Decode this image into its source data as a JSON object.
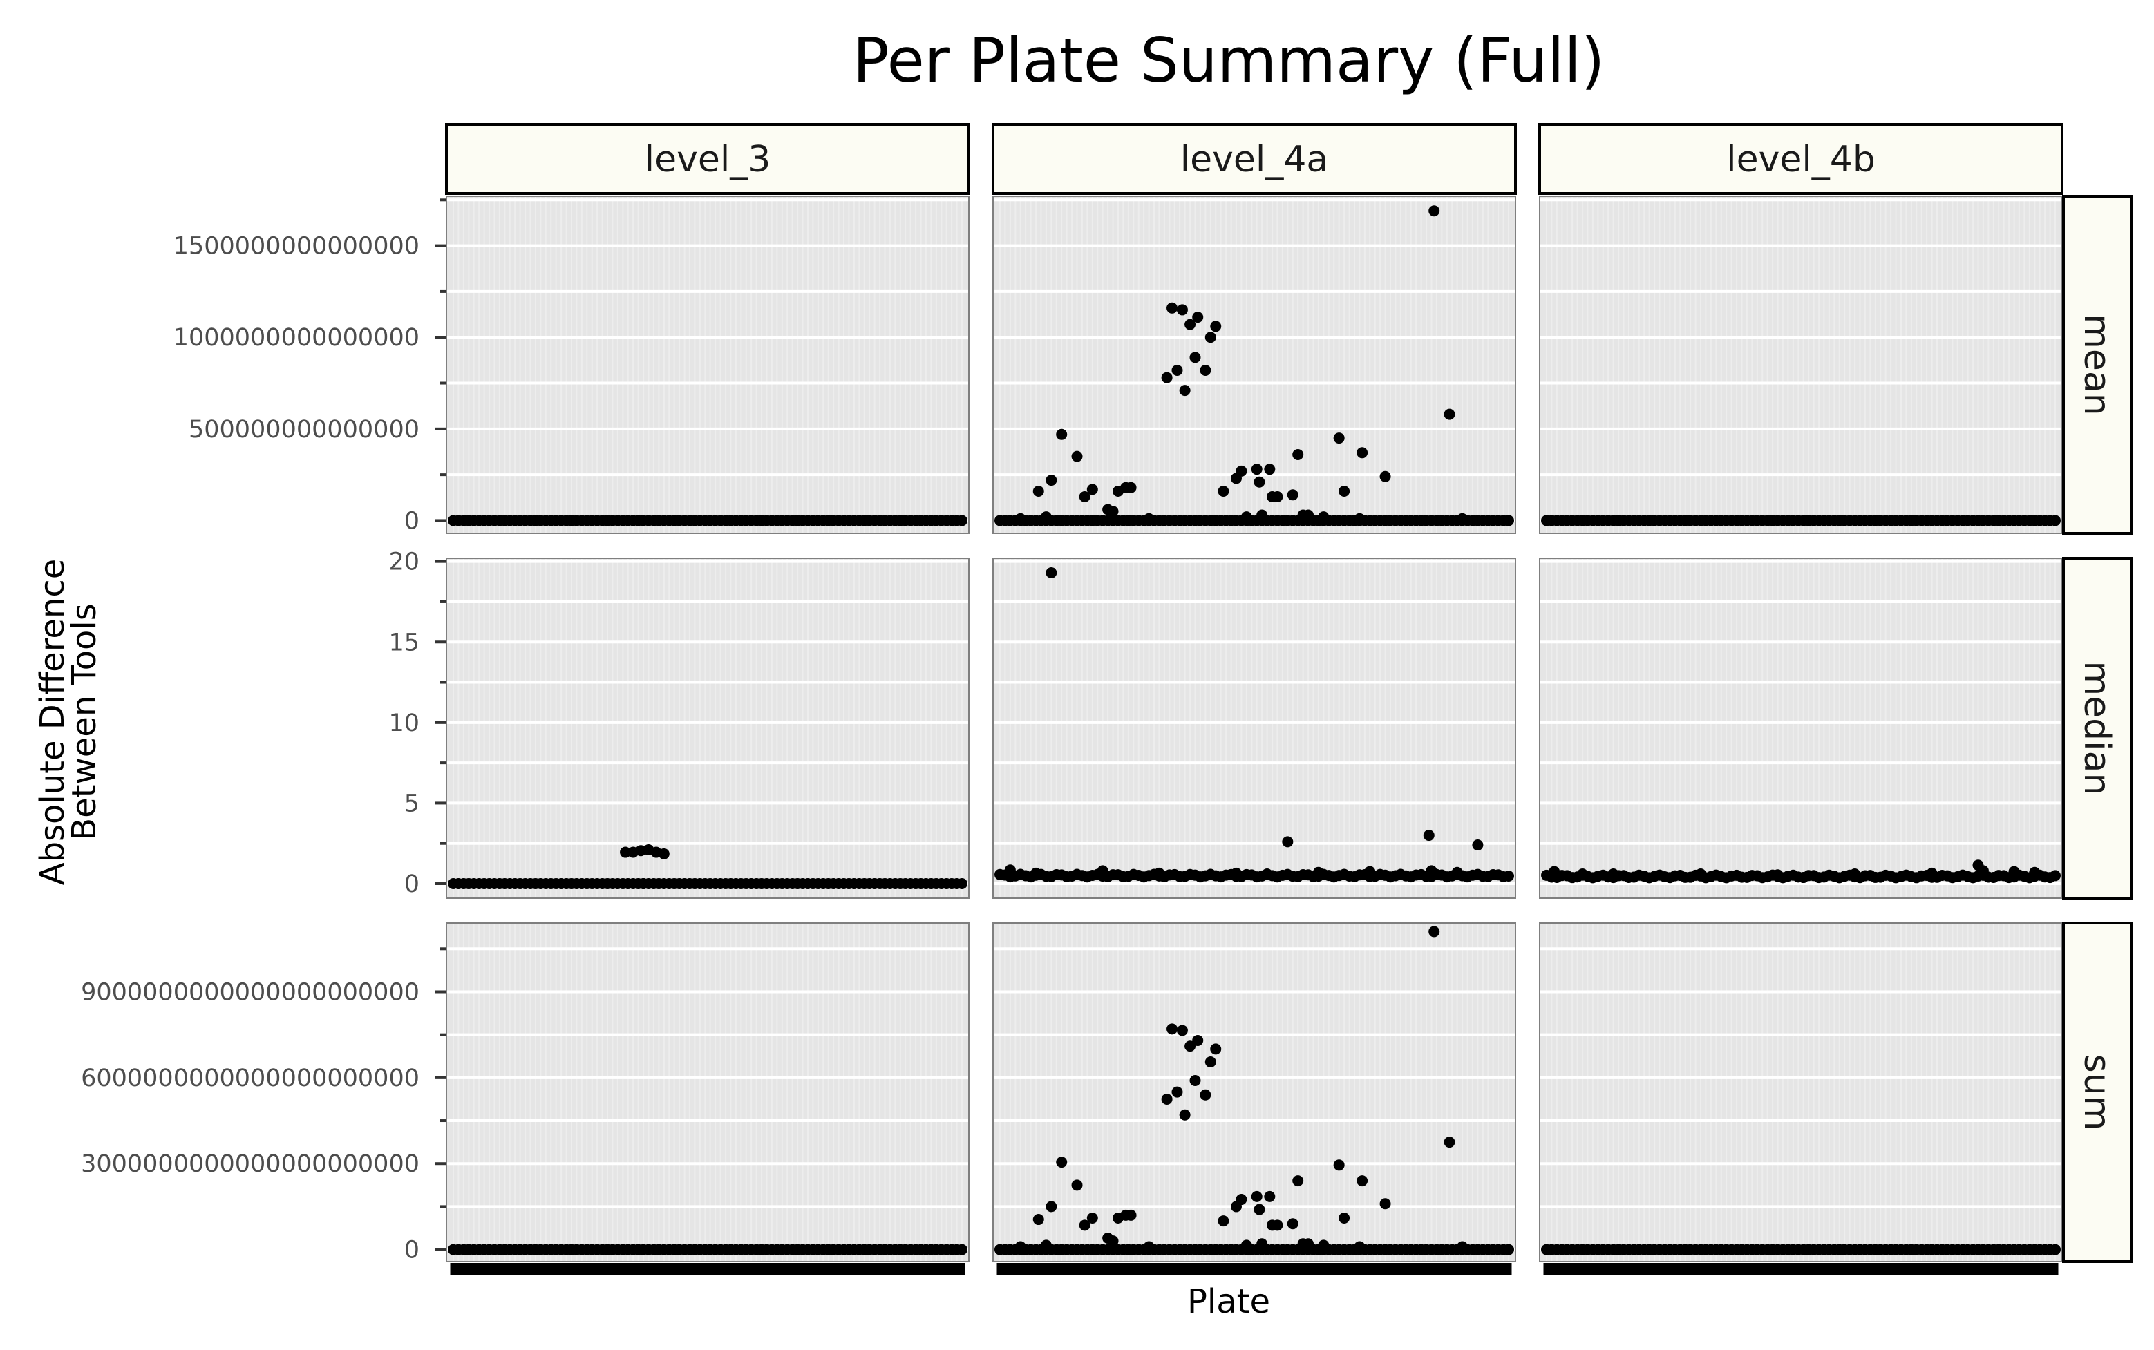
{
  "chart_data": {
    "type": "scatter",
    "title": "Per Plate Summary (Full)",
    "xlabel": "Plate",
    "ylabel_lines": [
      "Absolute Difference",
      "Between Tools"
    ],
    "grid": true,
    "legend": "none",
    "columns": [
      "level_3",
      "level_4a",
      "level_4b"
    ],
    "rows": [
      {
        "name": "mean",
        "ylim": [
          -70000000000000,
          1770000000000000
        ],
        "ticks": [
          0,
          500000000000000,
          1000000000000000,
          1500000000000000
        ],
        "tick_labels": [
          "0",
          "500000000000000",
          "1000000000000000",
          "1500000000000000"
        ]
      },
      {
        "name": "median",
        "ylim": [
          -0.9,
          20.2
        ],
        "ticks": [
          0,
          5,
          10,
          15,
          20
        ],
        "tick_labels": [
          "0",
          "5",
          "10",
          "15",
          "20"
        ]
      },
      {
        "name": "sum",
        "ylim": [
          -420000000000000000000,
          11400000000000000000000
        ],
        "ticks": [
          0,
          3000000000000000000000,
          6000000000000000000000,
          9000000000000000000000
        ],
        "tick_labels": [
          "0",
          "3000000000000000000000",
          "6000000000000000000000",
          "9000000000000000000000"
        ]
      }
    ],
    "x_count": 100,
    "panels": {
      "level_3": {
        "mean": {
          "baseline": 0,
          "points": []
        },
        "median": {
          "baseline": 0,
          "points": [
            [
              33.5,
              1.95
            ],
            [
              35,
              1.95
            ],
            [
              36.5,
              2.05
            ],
            [
              38,
              2.1
            ],
            [
              39.5,
              1.95
            ],
            [
              41,
              1.85
            ],
            [
              37,
              0
            ]
          ]
        },
        "sum": {
          "baseline": 0,
          "points": []
        }
      },
      "level_4a": {
        "mean": {
          "baseline": 0,
          "points": [
            [
              7.5,
              160000000000000
            ],
            [
              10,
              220000000000000
            ],
            [
              12,
              470000000000000
            ],
            [
              15,
              350000000000000
            ],
            [
              16.5,
              130000000000000
            ],
            [
              18,
              170000000000000
            ],
            [
              21,
              60000000000000
            ],
            [
              22,
              50000000000000
            ],
            [
              23,
              160000000000000
            ],
            [
              24.5,
              180000000000000
            ],
            [
              25.5,
              180000000000000
            ],
            [
              32.5,
              780000000000000
            ],
            [
              33.5,
              1160000000000000
            ],
            [
              34.5,
              820000000000000
            ],
            [
              35.5,
              1150000000000000
            ],
            [
              36,
              710000000000000
            ],
            [
              37,
              1070000000000000
            ],
            [
              38,
              890000000000000
            ],
            [
              38.5,
              1110000000000000
            ],
            [
              40,
              820000000000000
            ],
            [
              41,
              1000000000000000
            ],
            [
              42,
              1060000000000000
            ],
            [
              43.5,
              160000000000000
            ],
            [
              46,
              230000000000000
            ],
            [
              47,
              270000000000000
            ],
            [
              50,
              280000000000000
            ],
            [
              50.5,
              210000000000000
            ],
            [
              52.5,
              280000000000000
            ],
            [
              53,
              130000000000000
            ],
            [
              54,
              130000000000000
            ],
            [
              57,
              140000000000000
            ],
            [
              58,
              360000000000000
            ],
            [
              59,
              30000000000000
            ],
            [
              66,
              450000000000000
            ],
            [
              67,
              160000000000000
            ],
            [
              70.5,
              370000000000000
            ],
            [
              75,
              240000000000000
            ],
            [
              84.5,
              1690000000000000
            ],
            [
              87.5,
              580000000000000
            ],
            [
              4,
              10000000000000
            ],
            [
              9,
              20000000000000
            ],
            [
              29,
              10000000000000
            ],
            [
              48,
              20000000000000
            ],
            [
              51,
              30000000000000
            ],
            [
              60,
              30000000000000
            ],
            [
              63,
              20000000000000
            ],
            [
              70,
              10000000000000
            ],
            [
              90,
              10000000000000
            ]
          ]
        },
        "median": {
          "baseline": 0.5,
          "points": [
            [
              10,
              19.3
            ],
            [
              56,
              2.6
            ],
            [
              83.5,
              3.0
            ],
            [
              93,
              2.4
            ],
            [
              2,
              0.85
            ],
            [
              20,
              0.8
            ],
            [
              46,
              0.65
            ],
            [
              62,
              0.7
            ],
            [
              72,
              0.75
            ],
            [
              84,
              0.8
            ],
            [
              89,
              0.7
            ],
            [
              31,
              0.65
            ],
            [
              7,
              0.65
            ],
            [
              52,
              0.6
            ]
          ]
        },
        "sum": {
          "baseline": 0,
          "points": [
            [
              7.5,
              1050000000000000000000
            ],
            [
              10,
              1500000000000000000000
            ],
            [
              12,
              3050000000000000000000
            ],
            [
              15,
              2250000000000000000000
            ],
            [
              16.5,
              850000000000000000000
            ],
            [
              18,
              1100000000000000000000
            ],
            [
              21,
              400000000000000000000
            ],
            [
              22,
              300000000000000000000
            ],
            [
              23,
              1100000000000000000000
            ],
            [
              24.5,
              1200000000000000000000
            ],
            [
              25.5,
              1200000000000000000000
            ],
            [
              32.5,
              5250000000000000000000
            ],
            [
              33.5,
              7700000000000000000000
            ],
            [
              34.5,
              5500000000000000000000
            ],
            [
              35.5,
              7650000000000000000000
            ],
            [
              36,
              4700000000000000000000
            ],
            [
              37,
              7100000000000000000000
            ],
            [
              38,
              5900000000000000000000
            ],
            [
              38.5,
              7300000000000000000000
            ],
            [
              40,
              5400000000000000000000
            ],
            [
              41,
              6550000000000000000000
            ],
            [
              42,
              7000000000000000000000
            ],
            [
              43.5,
              1000000000000000000000
            ],
            [
              46,
              1500000000000000000000
            ],
            [
              47,
              1750000000000000000000
            ],
            [
              50,
              1850000000000000000000
            ],
            [
              50.5,
              1400000000000000000000
            ],
            [
              52.5,
              1850000000000000000000
            ],
            [
              53,
              850000000000000000000
            ],
            [
              54,
              850000000000000000000
            ],
            [
              57,
              900000000000000000000
            ],
            [
              58,
              2400000000000000000000
            ],
            [
              59,
              200000000000000000000
            ],
            [
              66,
              2950000000000000000000
            ],
            [
              67,
              1100000000000000000000
            ],
            [
              70.5,
              2400000000000000000000
            ],
            [
              75,
              1600000000000000000000
            ],
            [
              84.5,
              11100000000000000000000
            ],
            [
              87.5,
              3750000000000000000000
            ],
            [
              4,
              100000000000000000000
            ],
            [
              9,
              150000000000000000000
            ],
            [
              29,
              100000000000000000000
            ],
            [
              48,
              150000000000000000000
            ],
            [
              51,
              200000000000000000000
            ],
            [
              60,
              200000000000000000000
            ],
            [
              63,
              150000000000000000000
            ],
            [
              70,
              100000000000000000000
            ],
            [
              90,
              100000000000000000000
            ]
          ]
        }
      },
      "level_4b": {
        "mean": {
          "baseline": 0,
          "points": []
        },
        "median": {
          "baseline": 0.45,
          "points": [
            [
              1.5,
              0.75
            ],
            [
              7,
              0.6
            ],
            [
              13,
              0.6
            ],
            [
              30,
              0.6
            ],
            [
              45,
              0.55
            ],
            [
              60,
              0.6
            ],
            [
              75,
              0.65
            ],
            [
              84,
              1.15
            ],
            [
              85,
              0.8
            ],
            [
              91,
              0.75
            ],
            [
              95,
              0.7
            ]
          ]
        },
        "sum": {
          "baseline": 0,
          "points": []
        }
      }
    }
  }
}
